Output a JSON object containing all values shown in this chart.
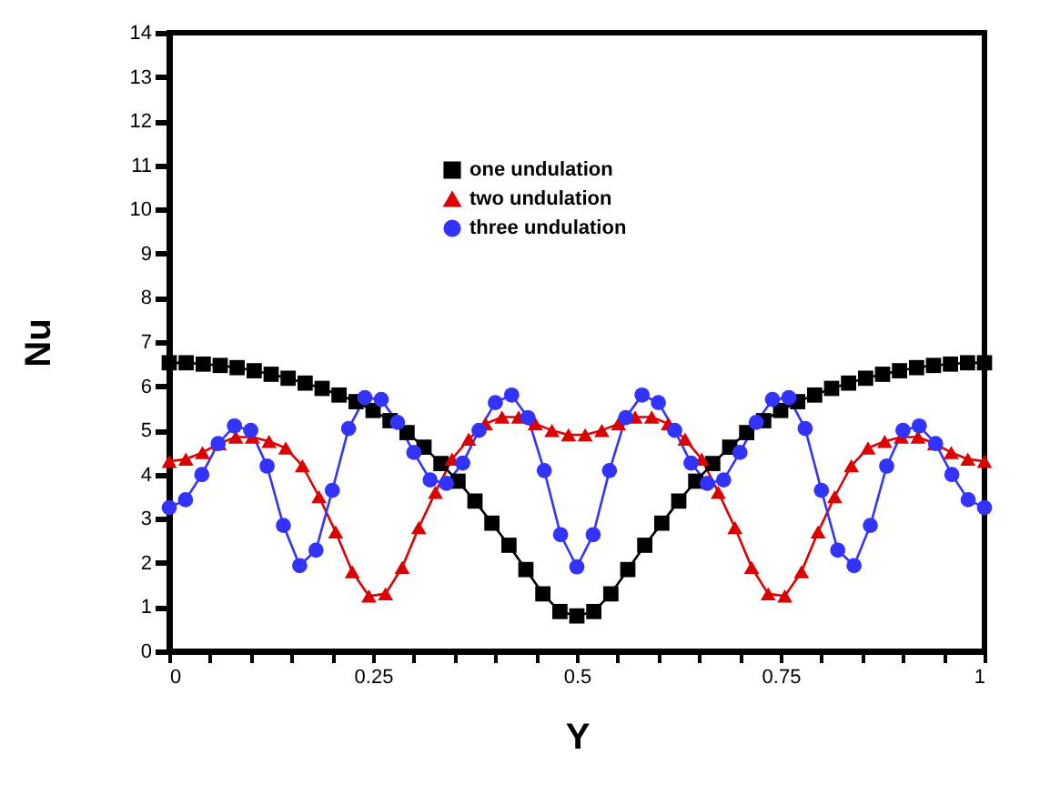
{
  "chart_data": {
    "type": "line",
    "xlabel": "Y",
    "ylabel": "Nu",
    "xlim": [
      0,
      1
    ],
    "ylim": [
      0,
      14
    ],
    "xticks": [
      0,
      {
        "value": 0.05,
        "label": null
      },
      {
        "value": 0.1,
        "label": null
      },
      {
        "value": 0.15,
        "label": null
      },
      {
        "value": 0.2,
        "label": null
      },
      0.25,
      {
        "value": 0.3,
        "label": null
      },
      {
        "value": 0.35,
        "label": null
      },
      {
        "value": 0.4,
        "label": null
      },
      {
        "value": 0.45,
        "label": null
      },
      0.5,
      {
        "value": 0.55,
        "label": null
      },
      {
        "value": 0.6,
        "label": null
      },
      {
        "value": 0.65,
        "label": null
      },
      {
        "value": 0.7,
        "label": null
      },
      0.75,
      {
        "value": 0.8,
        "label": null
      },
      {
        "value": 0.85,
        "label": null
      },
      {
        "value": 0.9,
        "label": null
      },
      {
        "value": 0.95,
        "label": null
      },
      1
    ],
    "yticks": [
      0,
      1,
      2,
      3,
      4,
      5,
      6,
      7,
      8,
      9,
      10,
      11,
      12,
      13,
      14
    ],
    "grid": false,
    "legend": "top",
    "line_style": "solid",
    "series": [
      {
        "name": "one undulation",
        "color": "#000000",
        "marker": "square",
        "x": [
          0,
          0.0208,
          0.0417,
          0.0625,
          0.0833,
          0.1042,
          0.125,
          0.1458,
          0.1667,
          0.1875,
          0.2083,
          0.2292,
          0.25,
          0.2708,
          0.2917,
          0.3125,
          0.3333,
          0.3542,
          0.375,
          0.3958,
          0.4167,
          0.4375,
          0.4583,
          0.4792,
          0.5,
          0.5208,
          0.5417,
          0.5625,
          0.5833,
          0.6042,
          0.625,
          0.6458,
          0.6667,
          0.6875,
          0.7083,
          0.7292,
          0.75,
          0.7708,
          0.7917,
          0.8125,
          0.8333,
          0.8542,
          0.875,
          0.8958,
          0.9167,
          0.9375,
          0.9583,
          0.9792,
          1
        ],
        "values": [
          6.53,
          6.53,
          6.5,
          6.47,
          6.42,
          6.35,
          6.27,
          6.18,
          6.07,
          5.95,
          5.8,
          5.65,
          5.45,
          5.22,
          4.95,
          4.62,
          4.25,
          3.85,
          3.4,
          2.9,
          2.4,
          1.85,
          1.3,
          0.9,
          0.8,
          0.9,
          1.3,
          1.85,
          2.4,
          2.9,
          3.4,
          3.85,
          4.25,
          4.62,
          4.95,
          5.22,
          5.45,
          5.65,
          5.8,
          5.95,
          6.07,
          6.18,
          6.27,
          6.35,
          6.42,
          6.47,
          6.5,
          6.53,
          6.53
        ]
      },
      {
        "name": "two undulation",
        "color": "#dd0000",
        "marker": "triangle",
        "x": [
          0,
          0.0204,
          0.0408,
          0.0612,
          0.0816,
          0.102,
          0.1224,
          0.1429,
          0.1633,
          0.1837,
          0.2041,
          0.2245,
          0.2449,
          0.2653,
          0.2857,
          0.3061,
          0.3265,
          0.3469,
          0.3673,
          0.3878,
          0.4082,
          0.4286,
          0.449,
          0.4694,
          0.4898,
          0.5102,
          0.5306,
          0.551,
          0.5714,
          0.5918,
          0.6122,
          0.6327,
          0.6531,
          0.6735,
          0.6939,
          0.7143,
          0.7347,
          0.7551,
          0.7755,
          0.7959,
          0.8163,
          0.8367,
          0.8571,
          0.8776,
          0.898,
          0.9184,
          0.9388,
          0.9592,
          0.9796,
          1
        ],
        "values": [
          4.3,
          4.35,
          4.5,
          4.7,
          4.85,
          4.85,
          4.75,
          4.6,
          4.2,
          3.5,
          2.7,
          1.8,
          1.25,
          1.3,
          1.9,
          2.8,
          3.6,
          4.35,
          4.8,
          5.15,
          5.3,
          5.3,
          5.15,
          5.0,
          4.9,
          4.9,
          5.0,
          5.15,
          5.3,
          5.3,
          5.15,
          4.8,
          4.35,
          3.6,
          2.8,
          1.9,
          1.3,
          1.25,
          1.8,
          2.7,
          3.5,
          4.2,
          4.6,
          4.75,
          4.85,
          4.85,
          4.7,
          4.5,
          4.35,
          4.3
        ]
      },
      {
        "name": "three undulation",
        "color": "#3333ff",
        "marker": "circle",
        "x": [
          0,
          0.02,
          0.04,
          0.06,
          0.08,
          0.1,
          0.12,
          0.14,
          0.16,
          0.18,
          0.2,
          0.22,
          0.24,
          0.26,
          0.28,
          0.3,
          0.32,
          0.34,
          0.36,
          0.38,
          0.4,
          0.42,
          0.44,
          0.46,
          0.48,
          0.5,
          0.52,
          0.54,
          0.56,
          0.58,
          0.6,
          0.62,
          0.64,
          0.66,
          0.68,
          0.7,
          0.72,
          0.74,
          0.76,
          0.78,
          0.8,
          0.82,
          0.84,
          0.86,
          0.88,
          0.9,
          0.92,
          0.94,
          0.96,
          0.98,
          1
        ],
        "values": [
          3.25,
          3.43,
          4.0,
          4.7,
          5.1,
          5.0,
          4.19,
          2.85,
          1.94,
          2.29,
          3.64,
          5.04,
          5.74,
          5.7,
          5.18,
          4.5,
          3.88,
          3.8,
          4.26,
          5.0,
          5.63,
          5.8,
          5.29,
          4.09,
          2.64,
          1.91,
          2.64,
          4.09,
          5.29,
          5.8,
          5.63,
          5.0,
          4.26,
          3.8,
          3.88,
          4.5,
          5.18,
          5.7,
          5.74,
          5.04,
          3.64,
          2.29,
          1.94,
          2.85,
          4.19,
          5.0,
          5.1,
          4.7,
          4.0,
          3.43,
          3.25
        ]
      }
    ]
  }
}
